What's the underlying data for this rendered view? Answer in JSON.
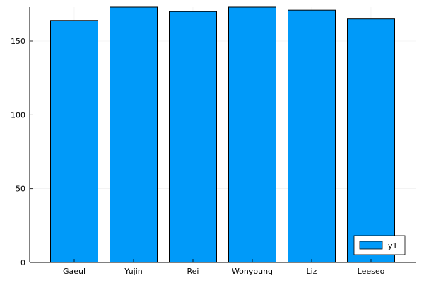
{
  "chart_data": {
    "type": "bar",
    "categories": [
      "Gaeul",
      "Yujin",
      "Rei",
      "Wonyoung",
      "Liz",
      "Leeseo"
    ],
    "series": [
      {
        "name": "y1",
        "values": [
          164,
          173,
          170,
          173,
          171,
          165
        ]
      }
    ],
    "yticks": [
      0,
      50,
      100,
      150
    ],
    "ylim": [
      0,
      173
    ],
    "grid": true,
    "legend_position": "bottom-right",
    "colors": {
      "bar_fill": "#009af9",
      "bar_stroke": "#000000",
      "grid": "#ececec"
    }
  }
}
